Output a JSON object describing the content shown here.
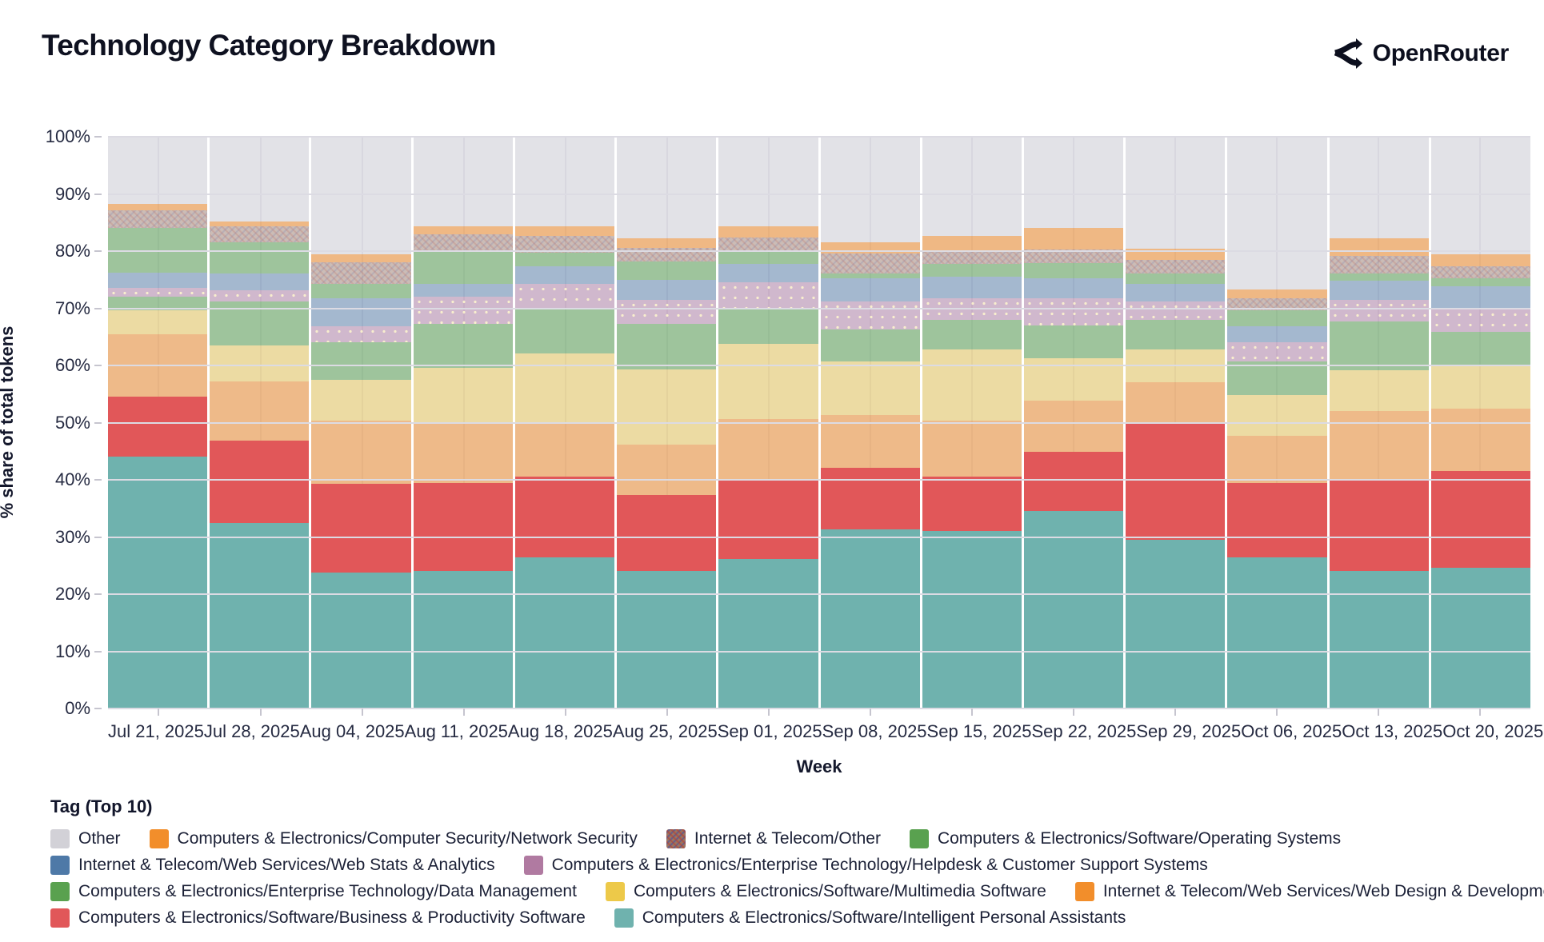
{
  "header": {
    "title": "Technology Category Breakdown",
    "brand": "OpenRouter"
  },
  "chart_data": {
    "type": "bar",
    "stacked": true,
    "percent": true,
    "title": "Technology Category Breakdown",
    "xlabel": "Week",
    "ylabel": "% share of total tokens",
    "legend_title": "Tag (Top 10)",
    "ylim": [
      0,
      100
    ],
    "grid": true,
    "x": [
      "Jul 21, 2025",
      "Jul 28, 2025",
      "Aug 04, 2025",
      "Aug 11, 2025",
      "Aug 18, 2025",
      "Aug 25, 2025",
      "Sep 01, 2025",
      "Sep 08, 2025",
      "Sep 15, 2025",
      "Sep 22, 2025",
      "Sep 29, 2025",
      "Oct 06, 2025",
      "Oct 13, 2025",
      "Oct 20, 2025"
    ],
    "y_ticks": [
      "0%",
      "10%",
      "20%",
      "30%",
      "40%",
      "50%",
      "60%",
      "70%",
      "80%",
      "90%",
      "100%"
    ],
    "series_bottom_to_top": [
      {
        "key": "intelligent-personal-assistants",
        "name": "Computers & Electronics/Software/Intelligent Personal Assistants",
        "color": "#6fb2ae",
        "opacity": 1,
        "pattern": "none",
        "values": [
          44.0,
          32.5,
          23.8,
          24.0,
          26.5,
          24.1,
          26.2,
          31.3,
          31.0,
          34.6,
          29.5,
          26.5,
          24.0,
          24.6
        ]
      },
      {
        "key": "business-productivity-software",
        "name": "Computers & Electronics/Software/Business & Productivity Software",
        "color": "#e15759",
        "opacity": 1,
        "pattern": "none",
        "values": [
          10.5,
          14.3,
          15.5,
          15.5,
          14.0,
          13.3,
          14.0,
          10.8,
          9.5,
          10.3,
          20.3,
          13.0,
          16.0,
          17.0
        ]
      },
      {
        "key": "web-design-development",
        "name": "Internet & Telecom/Web Services/Web Design & Development",
        "color": "#f28e2b",
        "opacity": 0.52,
        "pattern": "none",
        "values": [
          10.9,
          10.4,
          11.0,
          10.3,
          9.3,
          8.7,
          10.5,
          9.3,
          9.8,
          8.9,
          7.2,
          8.2,
          12.1,
          10.8
        ]
      },
      {
        "key": "multimedia-software",
        "name": "Computers & Electronics/Software/Multimedia Software",
        "color": "#edc949",
        "opacity": 0.46,
        "pattern": "none",
        "values": [
          4.3,
          6.3,
          7.2,
          9.8,
          12.3,
          13.2,
          13.1,
          9.3,
          12.5,
          7.5,
          5.8,
          7.2,
          7.0,
          7.4
        ]
      },
      {
        "key": "data-management",
        "name": "Computers & Electronics/Enterprise Technology/Data Management",
        "color": "#59a14f",
        "opacity": 0.52,
        "pattern": "none",
        "values": [
          2.3,
          7.7,
          6.5,
          7.7,
          7.7,
          8.0,
          6.3,
          5.6,
          5.2,
          5.7,
          5.2,
          5.8,
          8.6,
          6.1
        ]
      },
      {
        "key": "helpdesk-customer-support",
        "name": "Computers & Electronics/Enterprise Technology/Helpdesk & Customer Support Systems",
        "color": "#b07aa1",
        "opacity": 0.45,
        "pattern": "dots",
        "values": [
          1.6,
          2.0,
          2.8,
          4.7,
          4.5,
          4.2,
          4.4,
          4.9,
          3.7,
          4.8,
          3.2,
          3.3,
          3.8,
          3.9
        ]
      },
      {
        "key": "web-stats-analytics",
        "name": "Internet & Telecom/Web Services/Web Stats & Analytics",
        "color": "#4e79a7",
        "opacity": 0.45,
        "pattern": "none",
        "values": [
          2.6,
          2.9,
          4.9,
          2.3,
          3.0,
          3.5,
          3.3,
          4.0,
          3.8,
          3.4,
          3.1,
          2.8,
          3.3,
          4.0
        ]
      },
      {
        "key": "operating-systems",
        "name": "Computers & Electronics/Software/Operating Systems",
        "color": "#59a14f",
        "opacity": 0.52,
        "pattern": "none",
        "values": [
          7.9,
          5.5,
          2.6,
          5.7,
          2.4,
          3.2,
          2.1,
          0.9,
          2.3,
          2.7,
          1.8,
          2.8,
          1.3,
          1.4
        ]
      },
      {
        "key": "internet-telecom-other",
        "name": "Internet & Telecom/Other",
        "color": "#9c755f",
        "opacity": 0.4,
        "pattern": "hatch",
        "values": [
          3.0,
          2.7,
          3.7,
          2.9,
          3.0,
          2.4,
          2.5,
          3.5,
          2.3,
          2.4,
          2.4,
          2.1,
          3.1,
          2.2
        ]
      },
      {
        "key": "network-security",
        "name": "Computers & Electronics/Computer Security/Network Security",
        "color": "#f28e2b",
        "opacity": 0.55,
        "pattern": "none",
        "values": [
          1.2,
          0.9,
          1.5,
          1.4,
          1.6,
          1.6,
          1.9,
          1.9,
          2.6,
          3.8,
          1.9,
          1.6,
          3.0,
          2.1
        ]
      },
      {
        "key": "other",
        "name": "Other",
        "color": "#d2d1d7",
        "opacity": 0.35,
        "pattern": "none",
        "values": [
          11.7,
          14.8,
          20.5,
          15.7,
          15.7,
          17.8,
          15.7,
          18.5,
          17.3,
          15.9,
          19.6,
          26.7,
          17.8,
          20.5
        ]
      }
    ],
    "legend_rows": [
      [
        10,
        9,
        8,
        7
      ],
      [
        6,
        5
      ],
      [
        4,
        3,
        2
      ],
      [
        1,
        0
      ]
    ],
    "colors": {
      "plot_background": "#ebebf0",
      "gridline": "#dcdbe3",
      "bar_gap": "#ffffff",
      "text": "#14182c"
    }
  }
}
